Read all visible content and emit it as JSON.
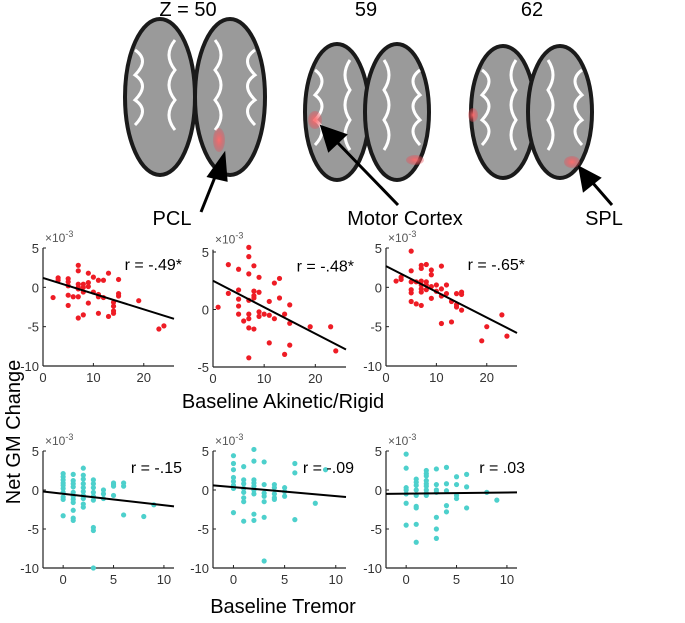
{
  "brain_panel": {
    "slices": [
      {
        "label": "Z = 50",
        "region": "PCL"
      },
      {
        "label": "59",
        "region": "Motor Cortex"
      },
      {
        "label": "62",
        "region": "SPL"
      }
    ],
    "blob_color": "#e8505a"
  },
  "shared_labels": {
    "ylabel": "Net GM Change",
    "xlabel_top": "Baseline Akinetic/Rigid",
    "xlabel_bottom": "Baseline Tremor",
    "multiplier": "×10",
    "multiplier_exp": "-3"
  },
  "chart_data": [
    {
      "type": "scatter",
      "region": "PCL",
      "predictor": "Baseline Akinetic/Rigid",
      "r_label": "r = -.49*",
      "color": "#ee1c25",
      "xlim": [
        0,
        26
      ],
      "ylim": [
        -10,
        5
      ],
      "xticks": [
        0,
        10,
        20
      ],
      "yticks": [
        5,
        0,
        -5,
        -10
      ],
      "fit": {
        "intercept": 1.2,
        "slope": -0.2
      },
      "x": [
        2,
        3,
        3,
        5,
        5,
        5,
        5,
        5,
        6,
        7,
        7,
        7,
        7,
        7,
        7,
        7,
        8,
        8,
        8,
        8,
        9,
        9,
        9,
        9,
        10,
        10,
        11,
        11,
        11,
        11,
        12,
        12,
        13,
        13,
        14,
        14,
        14,
        14,
        15,
        15,
        15,
        19,
        23,
        24
      ],
      "y": [
        -1.3,
        1.2,
        0.9,
        1.1,
        0.7,
        0.2,
        -1,
        -2.3,
        -1.2,
        2.8,
        2.1,
        0.4,
        0,
        -0.2,
        -1.2,
        -3.9,
        0.4,
        0,
        -0.6,
        -3.5,
        1.8,
        0.6,
        0.1,
        -2,
        1.3,
        -0.6,
        0.9,
        -0.9,
        -1.2,
        -3.3,
        0.9,
        -1.3,
        1.8,
        -3.7,
        -1.9,
        -2.4,
        -3,
        -3.3,
        1,
        -0.8,
        -1.1,
        -1.7,
        -5.3,
        -4.9
      ]
    },
    {
      "type": "scatter",
      "region": "Motor Cortex",
      "predictor": "Baseline Akinetic/Rigid",
      "r_label": "r = -.48*",
      "color": "#ee1c25",
      "xlim": [
        0,
        26
      ],
      "ylim": [
        -5,
        5.2
      ],
      "xticks": [
        0,
        10,
        20
      ],
      "yticks": [
        5,
        0,
        -5
      ],
      "fit": {
        "intercept": 2.5,
        "slope": -0.23
      },
      "x": [
        1,
        3,
        3,
        5,
        5,
        5,
        5,
        5,
        6,
        7,
        7,
        7,
        7,
        7,
        7,
        7,
        7,
        8,
        8,
        8,
        8,
        8,
        9,
        9,
        9,
        9,
        10,
        11,
        11,
        11,
        12,
        12,
        13,
        13,
        14,
        14,
        15,
        15,
        15,
        19,
        23,
        24
      ],
      "y": [
        0.2,
        3.9,
        1.4,
        3.5,
        1.7,
        0.9,
        0.3,
        -0.4,
        -1,
        5.4,
        4.6,
        3.1,
        0.8,
        -0.4,
        -0.8,
        -1.6,
        -4.2,
        3.8,
        1.6,
        1.2,
        1,
        -1.7,
        2.8,
        1.5,
        -0.2,
        -0.6,
        -0.4,
        0.7,
        -0.5,
        -2.9,
        2.3,
        -0.8,
        2.7,
        1,
        -0.4,
        -3.9,
        0.4,
        -1.2,
        -3.1,
        -1.5,
        -1.5,
        -3.6
      ]
    },
    {
      "type": "scatter",
      "region": "SPL",
      "predictor": "Baseline Akinetic/Rigid",
      "r_label": "r = -.65*",
      "color": "#ee1c25",
      "xlim": [
        0,
        26
      ],
      "ylim": [
        -10,
        5
      ],
      "xticks": [
        0,
        10,
        20
      ],
      "yticks": [
        5,
        0,
        -5,
        -10
      ],
      "fit": {
        "intercept": 2.7,
        "slope": -0.327
      },
      "x": [
        2,
        3,
        3,
        5,
        5,
        5,
        5,
        5,
        5,
        6,
        6,
        7,
        7,
        7,
        7,
        7,
        7,
        7,
        8,
        8,
        8,
        8,
        9,
        9,
        9,
        9,
        10,
        10,
        11,
        11,
        11,
        11,
        12,
        12,
        13,
        13,
        14,
        14,
        14,
        15,
        15,
        15,
        19,
        20,
        23,
        24
      ],
      "y": [
        0.8,
        1.3,
        1,
        4.6,
        2.1,
        0.7,
        -0.3,
        -0.7,
        -1.8,
        0.7,
        -2.1,
        2.8,
        2.4,
        0.8,
        0.3,
        -0.2,
        -0.6,
        -2.3,
        2.9,
        0.7,
        0.3,
        -0.3,
        2.2,
        1.6,
        0.1,
        -1.4,
        0.3,
        -0.5,
        2.7,
        -0.2,
        -1.1,
        -4.6,
        0.3,
        -0.8,
        -1.8,
        -4.4,
        -0.8,
        -2.2,
        -2.5,
        -0.6,
        -0.9,
        -2.9,
        -6.8,
        -5,
        -3.5,
        -6.2
      ]
    },
    {
      "type": "scatter",
      "region": "PCL",
      "predictor": "Baseline Tremor",
      "r_label": "r = -.15",
      "color": "#4dd0cc",
      "xlim": [
        -2,
        11
      ],
      "ylim": [
        -10,
        5
      ],
      "xticks": [
        0,
        5,
        10
      ],
      "yticks": [
        5,
        0,
        -5,
        -10
      ],
      "fit": {
        "intercept": -0.49,
        "slope": -0.146
      },
      "x": [
        0,
        0,
        0,
        0,
        0,
        0,
        0,
        0,
        0,
        0,
        1,
        1,
        1,
        1,
        1,
        1,
        1,
        1,
        1,
        1,
        1,
        2,
        2,
        2,
        2,
        2,
        2,
        2,
        2,
        2,
        2,
        3,
        3,
        3,
        3,
        3,
        3,
        3,
        3,
        3,
        4,
        4,
        4,
        5,
        5,
        5,
        5,
        6,
        6,
        6,
        8,
        9
      ],
      "y": [
        2.1,
        1.7,
        1.3,
        0.9,
        0.6,
        0.2,
        -0.3,
        -0.9,
        -1.2,
        -3.3,
        2,
        1.2,
        0.8,
        0.4,
        -0.3,
        -0.8,
        -1.2,
        -1.6,
        -2.6,
        -3.6,
        -3.9,
        2.8,
        1.9,
        1.4,
        0.8,
        0.3,
        -0.2,
        -0.7,
        -1.1,
        -1.8,
        -2.2,
        1.3,
        0.8,
        0.3,
        -0.3,
        -0.8,
        -1.3,
        -4.8,
        -5.2,
        -10,
        0,
        -0.5,
        -1.1,
        0.9,
        0.7,
        0.5,
        -0.7,
        0.9,
        0.5,
        -3.2,
        -3.4,
        -1.9
      ]
    },
    {
      "type": "scatter",
      "region": "Motor Cortex",
      "predictor": "Baseline Tremor",
      "r_label": "r = -.09",
      "color": "#4dd0cc",
      "xlim": [
        -2,
        11
      ],
      "ylim": [
        -10,
        5
      ],
      "xticks": [
        0,
        5,
        10
      ],
      "yticks": [
        5,
        0,
        -5,
        -10
      ],
      "fit": {
        "intercept": 0.37,
        "slope": -0.115
      },
      "x": [
        0,
        0,
        0,
        0,
        0,
        0,
        0,
        0,
        1,
        1,
        1,
        1,
        1,
        1,
        1,
        1,
        2,
        2,
        2,
        2,
        2,
        2,
        2,
        2,
        2,
        3,
        3,
        3,
        3,
        3,
        3,
        3,
        4,
        4,
        4,
        4,
        4,
        5,
        5,
        5,
        6,
        6,
        6,
        8,
        9
      ],
      "y": [
        4.4,
        3.4,
        2.6,
        1.6,
        1.1,
        0.6,
        0.2,
        -2.9,
        3,
        1.3,
        0.8,
        0.2,
        -0.3,
        -1,
        -1.5,
        -4,
        5.2,
        3.7,
        1.3,
        0.9,
        0.5,
        0,
        -0.5,
        -3.1,
        -3.9,
        3.6,
        0.7,
        -0.4,
        -0.8,
        -1.5,
        -3.5,
        -9.1,
        0.7,
        0.3,
        -0.5,
        -1,
        -1.2,
        0.3,
        -0.2,
        -0.8,
        3.4,
        2.2,
        -3.8,
        -1.7,
        2.6
      ]
    },
    {
      "type": "scatter",
      "region": "SPL",
      "predictor": "Baseline Tremor",
      "r_label": "r = .03",
      "color": "#4dd0cc",
      "xlim": [
        -2,
        11
      ],
      "ylim": [
        -10,
        5
      ],
      "xticks": [
        0,
        5,
        10
      ],
      "yticks": [
        5,
        0,
        -5,
        -10
      ],
      "fit": {
        "intercept": -0.47,
        "slope": 0.015
      },
      "x": [
        0,
        0,
        0,
        0,
        0,
        0,
        0,
        1,
        1,
        1,
        1,
        1,
        1,
        1,
        1,
        1,
        2,
        2,
        2,
        2,
        2,
        2,
        2,
        2,
        2,
        3,
        3,
        3,
        3,
        3,
        3,
        3,
        4,
        4,
        4,
        4,
        4,
        5,
        5,
        5,
        5,
        6,
        6,
        6,
        8,
        9
      ],
      "y": [
        4.6,
        2.8,
        0.3,
        0,
        -0.5,
        -1.7,
        -4.5,
        1.4,
        1,
        0.6,
        0,
        -0.7,
        -2.1,
        -2.3,
        -4.4,
        -6.7,
        2.5,
        2.1,
        1.8,
        1.2,
        0.8,
        0.5,
        0,
        -0.4,
        -0.7,
        2.7,
        0.7,
        0,
        -0.3,
        -3.5,
        -5,
        -6.2,
        2.9,
        0.8,
        -0.1,
        -2,
        -2.8,
        1.7,
        0.7,
        -0.7,
        -1.1,
        2,
        0.4,
        -2.3,
        -0.3,
        -1.3
      ]
    }
  ]
}
